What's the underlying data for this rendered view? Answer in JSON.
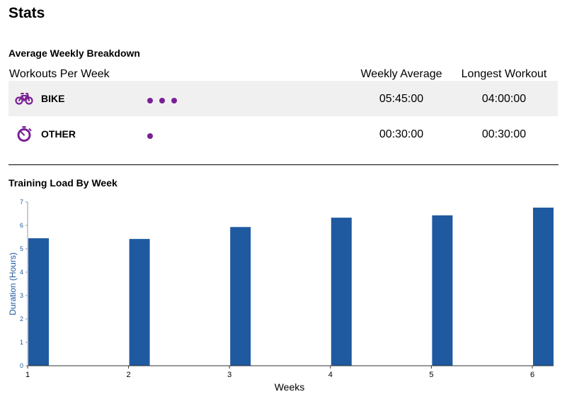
{
  "page": {
    "title": "Stats"
  },
  "breakdown": {
    "title": "Average Weekly Breakdown",
    "headers": {
      "workouts": "Workouts Per Week",
      "average": "Weekly Average",
      "longest": "Longest Workout"
    },
    "rows": [
      {
        "sport": "BIKE",
        "icon": "bicycle-icon",
        "workouts_per_week": 3,
        "weekly_average": "05:45:00",
        "longest_workout": "04:00:00"
      },
      {
        "sport": "OTHER",
        "icon": "stopwatch-icon",
        "workouts_per_week": 1,
        "weekly_average": "00:30:00",
        "longest_workout": "00:30:00"
      }
    ]
  },
  "colors": {
    "accent": "#7a1f95",
    "bar": "#1f5aa0",
    "axis_label": "#1f5aa0",
    "row_alt": "#f0f0f0"
  },
  "chart_data": {
    "type": "bar",
    "title": "Training Load By Week",
    "xlabel": "Weeks",
    "ylabel": "Duration (Hours)",
    "categories": [
      "1",
      "2",
      "3",
      "4",
      "5",
      "6"
    ],
    "values": [
      5.45,
      5.42,
      5.93,
      6.33,
      6.43,
      6.76
    ],
    "ylim": [
      0,
      7
    ],
    "yticks": [
      0,
      1,
      2,
      3,
      4,
      5,
      6,
      7
    ],
    "grid": false,
    "legend": "none"
  }
}
